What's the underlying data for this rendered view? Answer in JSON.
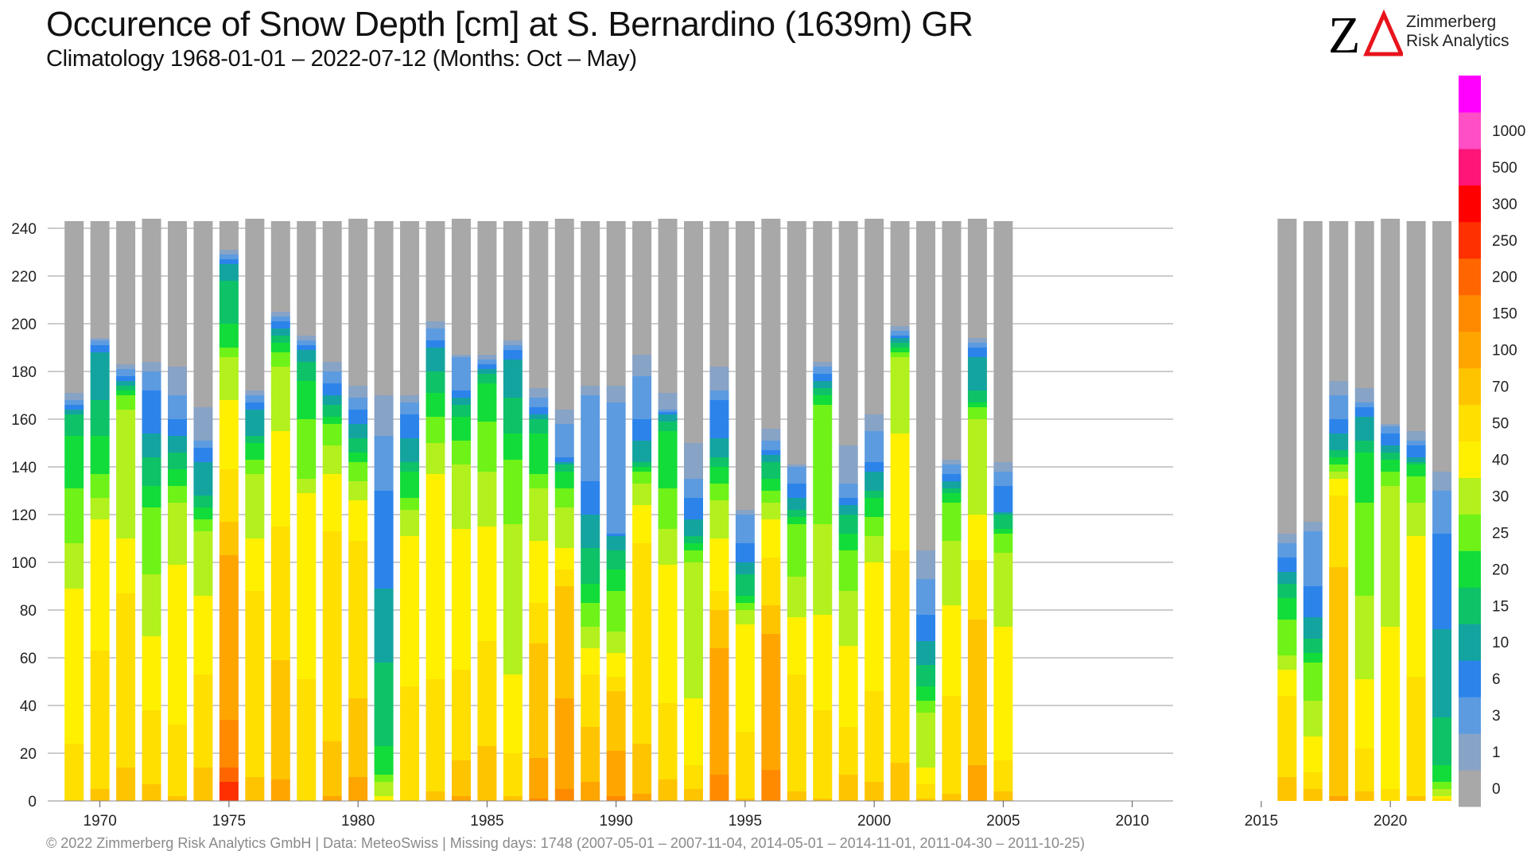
{
  "header": {
    "title": "Occurence of Snow Depth [cm] at S. Bernardino (1639m) GR",
    "subtitle": "Climatology 1968-01-01 – 2022-07-12 (Months: Oct – May)"
  },
  "logo": {
    "company_line1": "Zimmerberg",
    "company_line2": "Risk Analytics"
  },
  "footer": {
    "text": "©  2022 Zimmerberg Risk Analytics GmbH | Data: MeteoSwiss | Missing days: 1748 (2007-05-01 – 2007-11-04, 2014-05-01 – 2014-11-01, 2011-04-30 – 2011-10-25)"
  },
  "chart_data": {
    "type": "bar",
    "stacked": true,
    "ylim": [
      0,
      240
    ],
    "y_ticks": [
      0,
      20,
      40,
      60,
      80,
      100,
      120,
      140,
      160,
      180,
      200,
      220,
      240
    ],
    "x_ticks": [
      "1970",
      "1975",
      "1980",
      "1985",
      "1990",
      "1995",
      "2000",
      "2005",
      "2010",
      "2015",
      "2020"
    ],
    "grid": true,
    "legend": {
      "placement": "right",
      "labels": [
        "0",
        "1",
        "3",
        "6",
        "10",
        "15",
        "20",
        "25",
        "30",
        "40",
        "50",
        "70",
        "100",
        "150",
        "200",
        "250",
        "300",
        "500",
        "1000"
      ],
      "colors": [
        "#a8a8a8",
        "#87a3c6",
        "#5c9be0",
        "#2c84eb",
        "#14a4a0",
        "#0ec268",
        "#12dc3a",
        "#6ef218",
        "#b2f01e",
        "#fff000",
        "#ffdf00",
        "#ffc400",
        "#ffa500",
        "#ff8a00",
        "#ff6600",
        "#ff3000",
        "#ff0000",
        "#ff1577",
        "#ff4fc6",
        "#ff00ff"
      ]
    },
    "class_colors": [
      "#a8a8a8",
      "#87a3c6",
      "#5c9be0",
      "#2c84eb",
      "#14a4a0",
      "#0ec268",
      "#12dc3a",
      "#6ef218",
      "#b2f01e",
      "#fff000",
      "#ffdf00",
      "#ffc400",
      "#ffa500",
      "#ff8a00",
      "#ff6600",
      "#ff3000",
      "#ff0000",
      "#ff1577",
      "#ff4fc6",
      "#ff00ff"
    ],
    "seasons": [
      {
        "year": 1969,
        "total": 243,
        "bounds": [
          0,
          24,
          89,
          108,
          131,
          153,
          162,
          164,
          166,
          168,
          171
        ]
      },
      {
        "year": 1970,
        "total": 243,
        "bounds": [
          5,
          63,
          118,
          127,
          137,
          153,
          168,
          188,
          191,
          193,
          194
        ]
      },
      {
        "year": 1971,
        "total": 243,
        "bounds": [
          14,
          87,
          110,
          164,
          170,
          172,
          174,
          176,
          178,
          181,
          183
        ]
      },
      {
        "year": 1972,
        "total": 244,
        "bounds": [
          7,
          38,
          69,
          95,
          123,
          132,
          144,
          154,
          172,
          180,
          184
        ]
      },
      {
        "year": 1973,
        "total": 243,
        "bounds": [
          2,
          32,
          99,
          125,
          132,
          139,
          146,
          153,
          160,
          170,
          182
        ]
      },
      {
        "year": 1974,
        "total": 243,
        "bounds": [
          14,
          53,
          86,
          113,
          118,
          123,
          128,
          142,
          148,
          151,
          165
        ]
      },
      {
        "year": 1975,
        "total": 243,
        "bounds": [
          0,
          8,
          14,
          34,
          103,
          117,
          139,
          168,
          186,
          190,
          200,
          218,
          225,
          227,
          229,
          231
        ]
      },
      {
        "year": 1976,
        "total": 244,
        "bounds": [
          0,
          10,
          88,
          110,
          137,
          143,
          150,
          153,
          164,
          167,
          170,
          172
        ]
      },
      {
        "year": 1977,
        "total": 243,
        "bounds": [
          0,
          9,
          59,
          115,
          155,
          182,
          188,
          192,
          195,
          198,
          201,
          203,
          205
        ]
      },
      {
        "year": 1978,
        "total": 243,
        "bounds": [
          0,
          51,
          129,
          135,
          160,
          176,
          184,
          189,
          191,
          193,
          195
        ]
      },
      {
        "year": 1979,
        "total": 243,
        "bounds": [
          0,
          2,
          25,
          113,
          137,
          149,
          158,
          161,
          166,
          170,
          175,
          180,
          184
        ]
      },
      {
        "year": 1980,
        "total": 244,
        "bounds": [
          10,
          43,
          109,
          126,
          134,
          142,
          146,
          152,
          158,
          164,
          169,
          174
        ]
      },
      {
        "year": 1981,
        "total": 243,
        "bounds": [
          2,
          8,
          11,
          23,
          58,
          89,
          130,
          153,
          170
        ]
      },
      {
        "year": 1982,
        "total": 243,
        "bounds": [
          48,
          111,
          122,
          127,
          138,
          142,
          152,
          162,
          167,
          170
        ]
      },
      {
        "year": 1983,
        "total": 243,
        "bounds": [
          4,
          51,
          137,
          150,
          161,
          171,
          180,
          190,
          193,
          198,
          201
        ]
      },
      {
        "year": 1984,
        "total": 244,
        "bounds": [
          2,
          17,
          55,
          114,
          141,
          151,
          161,
          166,
          169,
          172,
          186,
          187
        ]
      },
      {
        "year": 1985,
        "total": 243,
        "bounds": [
          23,
          67,
          115,
          138,
          159,
          175,
          179,
          181,
          183,
          185,
          187
        ]
      },
      {
        "year": 1986,
        "total": 243,
        "bounds": [
          2,
          20,
          53,
          116,
          143,
          154,
          169,
          185,
          189,
          191,
          193
        ]
      },
      {
        "year": 1987,
        "total": 243,
        "bounds": [
          1,
          18,
          66,
          83,
          109,
          131,
          137,
          154,
          160,
          162,
          165,
          169,
          173
        ]
      },
      {
        "year": 1988,
        "total": 244,
        "bounds": [
          5,
          43,
          90,
          97,
          106,
          123,
          131,
          138,
          141,
          142,
          144,
          158,
          164
        ]
      },
      {
        "year": 1989,
        "total": 243,
        "bounds": [
          8,
          31,
          53,
          64,
          73,
          83,
          91,
          106,
          120,
          134,
          170,
          174
        ]
      },
      {
        "year": 1990,
        "total": 243,
        "bounds": [
          2,
          21,
          46,
          52,
          62,
          71,
          88,
          97,
          105,
          111,
          112,
          167,
          174
        ]
      },
      {
        "year": 1991,
        "total": 243,
        "bounds": [
          3,
          24,
          108,
          124,
          133,
          138,
          140,
          142,
          151,
          160,
          178,
          187
        ]
      },
      {
        "year": 1992,
        "total": 244,
        "bounds": [
          9,
          41,
          99,
          114,
          131,
          155,
          159,
          162,
          163,
          164,
          171
        ]
      },
      {
        "year": 1993,
        "total": 243,
        "bounds": [
          5,
          15,
          43,
          100,
          105,
          108,
          111,
          118,
          127,
          135,
          150
        ]
      },
      {
        "year": 1994,
        "total": 243,
        "bounds": [
          11,
          64,
          80,
          88,
          110,
          126,
          133,
          140,
          144,
          152,
          168,
          172,
          182
        ]
      },
      {
        "year": 1995,
        "total": 243,
        "bounds": [
          0,
          1,
          29,
          74,
          80,
          83,
          86,
          95,
          100,
          108,
          120,
          122
        ]
      },
      {
        "year": 1996,
        "total": 244,
        "bounds": [
          13,
          70,
          82,
          102,
          118,
          125,
          130,
          135,
          142,
          145,
          147,
          151,
          156
        ]
      },
      {
        "year": 1997,
        "total": 243,
        "bounds": [
          4,
          53,
          77,
          94,
          116,
          119,
          122,
          127,
          133,
          140,
          141
        ]
      },
      {
        "year": 1998,
        "total": 243,
        "bounds": [
          1,
          38,
          78,
          116,
          166,
          170,
          173,
          176,
          179,
          182,
          184
        ]
      },
      {
        "year": 1999,
        "total": 243,
        "bounds": [
          11,
          31,
          65,
          88,
          105,
          112,
          120,
          124,
          127,
          133,
          149
        ]
      },
      {
        "year": 2000,
        "total": 244,
        "bounds": [
          8,
          46,
          100,
          111,
          119,
          127,
          130,
          138,
          142,
          155,
          162
        ]
      },
      {
        "year": 2001,
        "total": 243,
        "bounds": [
          16,
          105,
          154,
          186,
          188,
          190,
          192,
          194,
          195,
          197,
          199
        ]
      },
      {
        "year": 2002,
        "total": 243,
        "bounds": [
          1,
          7,
          14,
          37,
          42,
          48,
          57,
          67,
          78,
          93,
          105
        ]
      },
      {
        "year": 2003,
        "total": 243,
        "bounds": [
          3,
          44,
          82,
          109,
          125,
          129,
          131,
          134,
          137,
          141,
          143
        ]
      },
      {
        "year": 2004,
        "total": 244,
        "bounds": [
          15,
          76,
          101,
          120,
          160,
          165,
          167,
          172,
          186,
          190,
          192,
          194
        ]
      },
      {
        "year": 2005,
        "total": 243,
        "bounds": [
          0,
          4,
          17,
          73,
          104,
          112,
          114,
          120,
          121,
          132,
          138,
          142
        ]
      },
      {
        "year": 2016,
        "total": 244,
        "bounds": [
          0,
          10,
          44,
          55,
          61,
          76,
          85,
          91,
          96,
          102,
          108,
          112
        ]
      },
      {
        "year": 2017,
        "total": 243,
        "bounds": [
          0,
          5,
          12,
          27,
          42,
          58,
          62,
          68,
          77,
          90,
          113,
          117
        ]
      },
      {
        "year": 2018,
        "total": 243,
        "bounds": [
          2,
          98,
          128,
          135,
          138,
          141,
          144,
          147,
          154,
          160,
          170,
          176
        ]
      },
      {
        "year": 2019,
        "total": 243,
        "bounds": [
          0,
          4,
          22,
          51,
          86,
          125,
          146,
          151,
          161,
          165,
          167,
          173
        ]
      },
      {
        "year": 2020,
        "total": 244,
        "bounds": [
          0,
          5,
          73,
          132,
          138,
          143,
          146,
          149,
          154,
          157,
          158
        ]
      },
      {
        "year": 2021,
        "total": 243,
        "bounds": [
          0,
          2,
          52,
          111,
          125,
          136,
          141,
          142,
          144,
          149,
          151,
          155
        ]
      },
      {
        "year": 2022,
        "total": 243,
        "bounds": [
          1,
          2,
          5,
          8,
          15,
          35,
          72,
          112,
          130,
          138
        ]
      }
    ]
  }
}
